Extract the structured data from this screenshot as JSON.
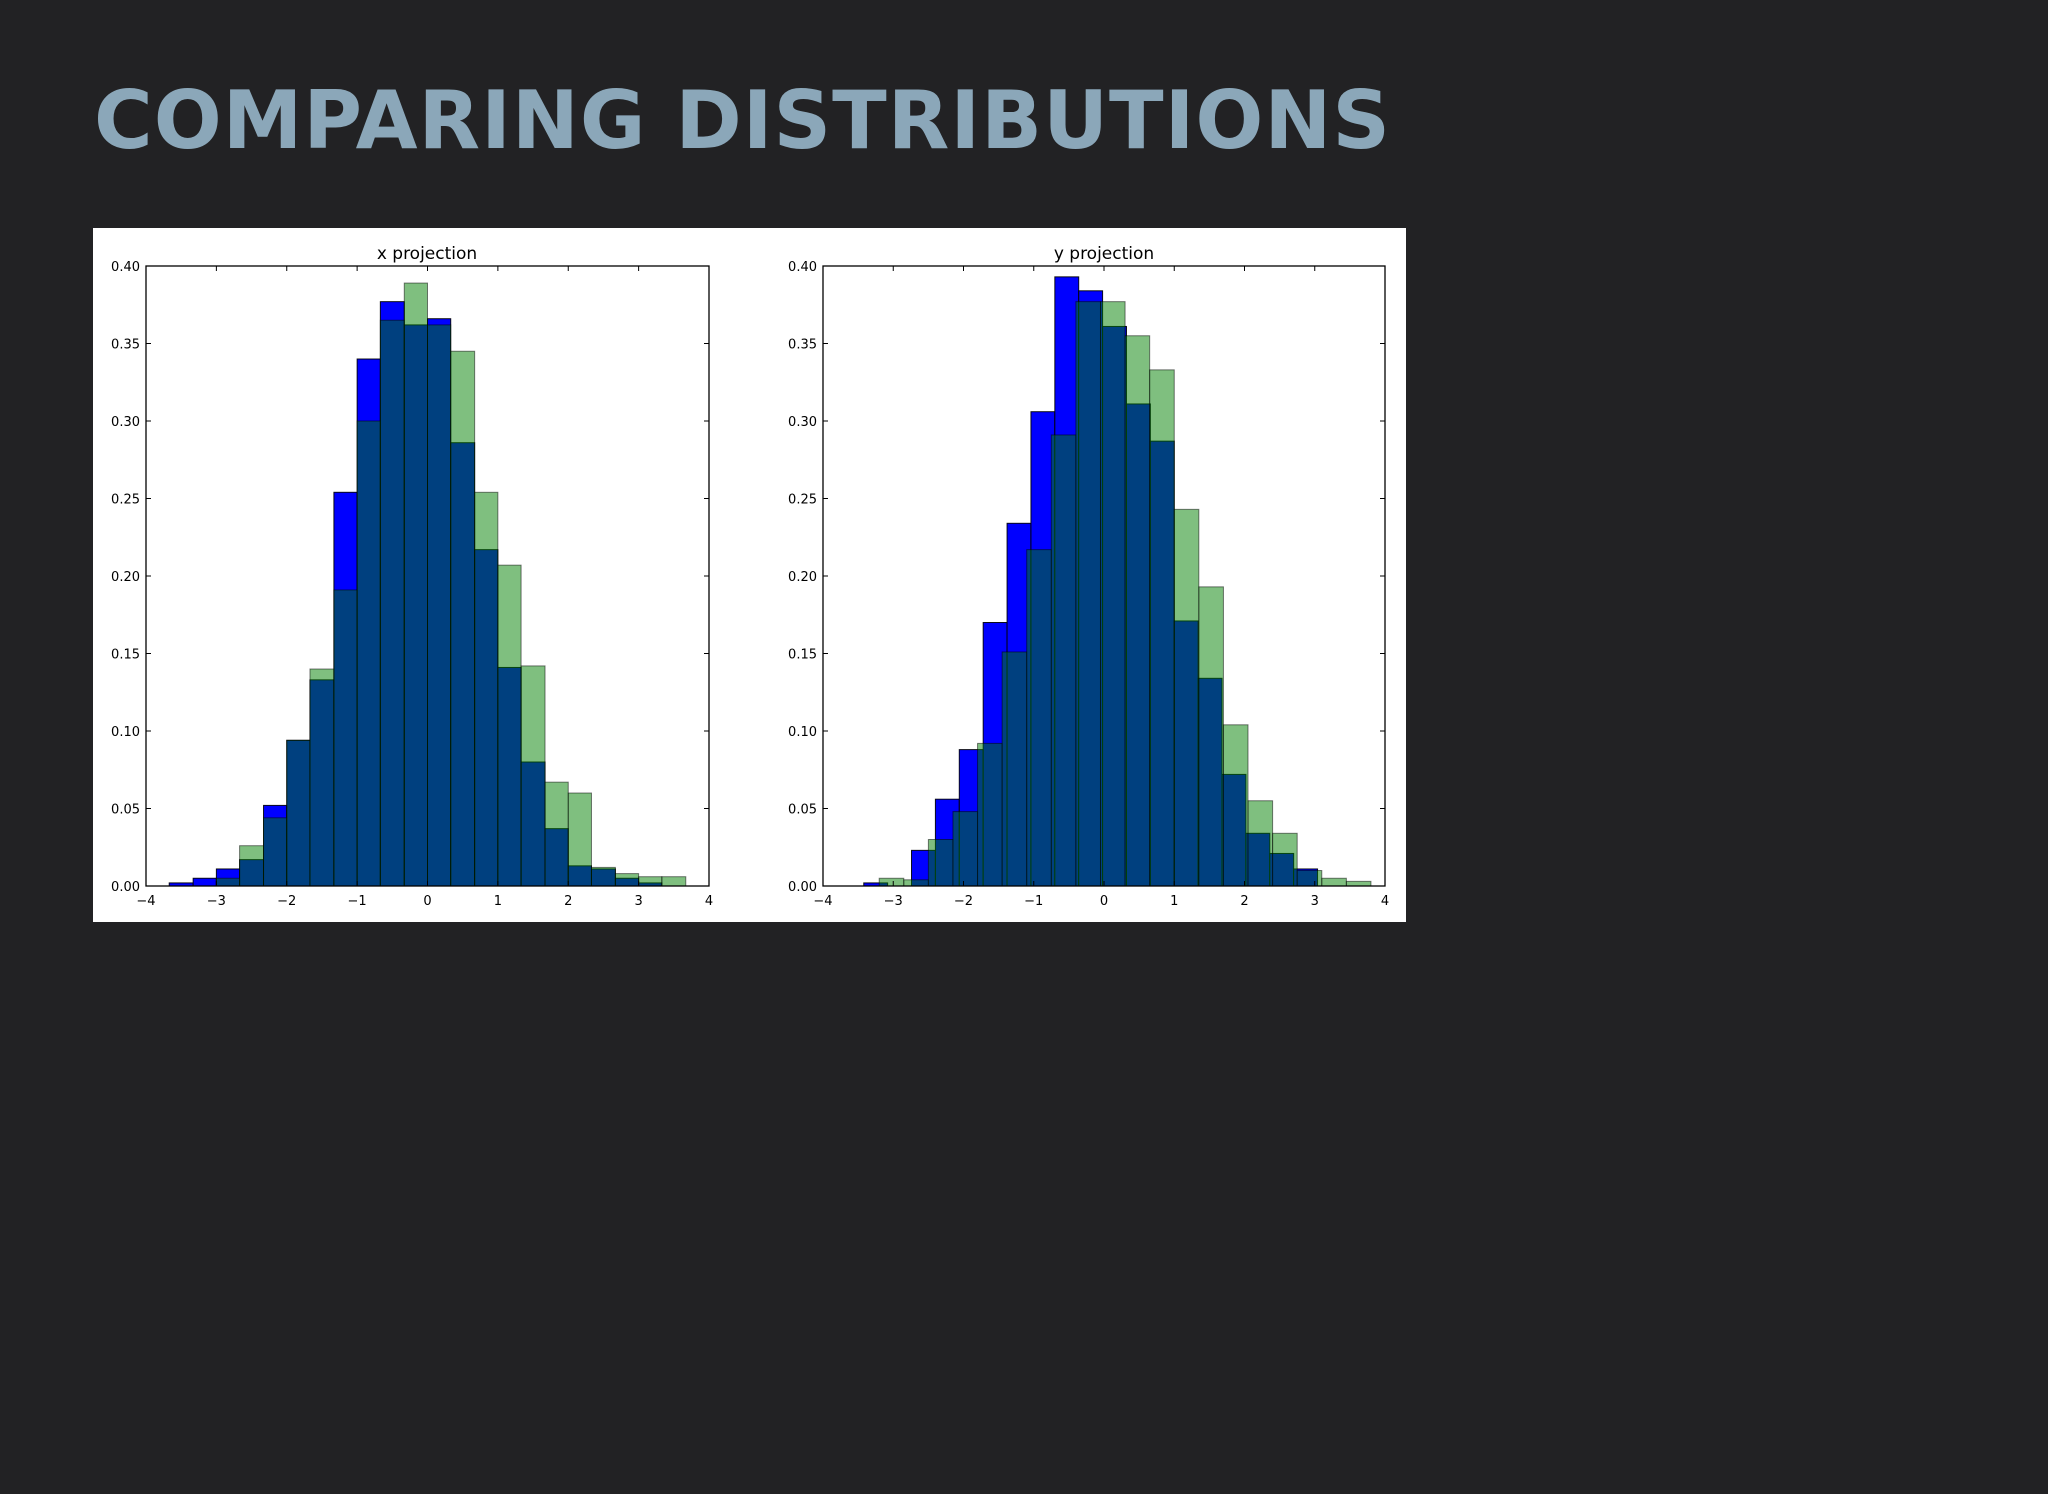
{
  "slide": {
    "title": "COMPARING DISTRIBUTIONS"
  },
  "colors": {
    "background": "#222224",
    "title": "#8ba7b9",
    "blue_series": "#0000ff",
    "green_series": "#008000",
    "green_alpha": 0.5
  },
  "chart_data": [
    {
      "type": "bar",
      "title": "x projection",
      "xlabel": "",
      "ylabel": "",
      "xlim": [
        -4,
        4
      ],
      "ylim": [
        0,
        0.4
      ],
      "xticks": [
        "−4",
        "−3",
        "−2",
        "−1",
        "0",
        "1",
        "2",
        "3",
        "4"
      ],
      "yticks": [
        "0.00",
        "0.05",
        "0.10",
        "0.15",
        "0.20",
        "0.25",
        "0.30",
        "0.35",
        "0.40"
      ],
      "grid": false,
      "series": [
        {
          "color": "#0000ff",
          "alpha": 1,
          "bins": [
            [
              -3.67,
              -3.33,
              0.002
            ],
            [
              -3.33,
              -3.0,
              0.005
            ],
            [
              -3.0,
              -2.67,
              0.011
            ],
            [
              -2.67,
              -2.33,
              0.017
            ],
            [
              -2.33,
              -2.0,
              0.052
            ],
            [
              -2.0,
              -1.67,
              0.094
            ],
            [
              -1.67,
              -1.33,
              0.133
            ],
            [
              -1.33,
              -1.0,
              0.254
            ],
            [
              -1.0,
              -0.67,
              0.34
            ],
            [
              -0.67,
              -0.33,
              0.377
            ],
            [
              -0.33,
              0.0,
              0.362
            ],
            [
              0.0,
              0.33,
              0.366
            ],
            [
              0.33,
              0.67,
              0.286
            ],
            [
              0.67,
              1.0,
              0.217
            ],
            [
              1.0,
              1.33,
              0.141
            ],
            [
              1.33,
              1.67,
              0.08
            ],
            [
              1.67,
              2.0,
              0.037
            ],
            [
              2.0,
              2.33,
              0.013
            ],
            [
              2.33,
              2.67,
              0.011
            ],
            [
              2.67,
              3.0,
              0.005
            ],
            [
              3.0,
              3.33,
              0.002
            ]
          ]
        },
        {
          "color": "#008000",
          "alpha": 0.5,
          "bins": [
            [
              -3.0,
              -2.67,
              0.005
            ],
            [
              -2.67,
              -2.33,
              0.026
            ],
            [
              -2.33,
              -2.0,
              0.044
            ],
            [
              -2.0,
              -1.67,
              0.094
            ],
            [
              -1.67,
              -1.33,
              0.14
            ],
            [
              -1.33,
              -1.0,
              0.191
            ],
            [
              -1.0,
              -0.67,
              0.3
            ],
            [
              -0.67,
              -0.33,
              0.365
            ],
            [
              -0.33,
              0.0,
              0.389
            ],
            [
              0.0,
              0.33,
              0.362
            ],
            [
              0.33,
              0.67,
              0.345
            ],
            [
              0.67,
              1.0,
              0.254
            ],
            [
              1.0,
              1.33,
              0.207
            ],
            [
              1.33,
              1.67,
              0.142
            ],
            [
              1.67,
              2.0,
              0.067
            ],
            [
              2.0,
              2.33,
              0.06
            ],
            [
              2.33,
              2.67,
              0.012
            ],
            [
              2.67,
              3.0,
              0.008
            ],
            [
              3.0,
              3.33,
              0.006
            ],
            [
              3.33,
              3.67,
              0.006
            ]
          ]
        }
      ]
    },
    {
      "type": "bar",
      "title": "y projection",
      "xlabel": "",
      "ylabel": "",
      "xlim": [
        -4,
        4
      ],
      "ylim": [
        0,
        0.4
      ],
      "xticks": [
        "−4",
        "−3",
        "−2",
        "−1",
        "0",
        "1",
        "2",
        "3",
        "4"
      ],
      "yticks": [
        "0.00",
        "0.05",
        "0.10",
        "0.15",
        "0.20",
        "0.25",
        "0.30",
        "0.35",
        "0.40"
      ],
      "grid": false,
      "series": [
        {
          "color": "#0000ff",
          "alpha": 1,
          "bins": [
            [
              -3.42,
              -3.08,
              0.002
            ],
            [
              -2.74,
              -2.4,
              0.023
            ],
            [
              -2.4,
              -2.06,
              0.056
            ],
            [
              -2.06,
              -1.72,
              0.088
            ],
            [
              -1.72,
              -1.38,
              0.17
            ],
            [
              -1.38,
              -1.04,
              0.234
            ],
            [
              -1.04,
              -0.7,
              0.306
            ],
            [
              -0.7,
              -0.36,
              0.393
            ],
            [
              -0.36,
              -0.02,
              0.384
            ],
            [
              -0.02,
              0.32,
              0.361
            ],
            [
              0.32,
              0.66,
              0.311
            ],
            [
              0.66,
              1.0,
              0.287
            ],
            [
              1.0,
              1.34,
              0.171
            ],
            [
              1.34,
              1.68,
              0.134
            ],
            [
              1.68,
              2.02,
              0.072
            ],
            [
              2.02,
              2.36,
              0.034
            ],
            [
              2.36,
              2.7,
              0.021
            ],
            [
              2.7,
              3.04,
              0.011
            ]
          ]
        },
        {
          "color": "#008000",
          "alpha": 0.5,
          "bins": [
            [
              -3.2,
              -2.85,
              0.005
            ],
            [
              -2.85,
              -2.5,
              0.004
            ],
            [
              -2.5,
              -2.15,
              0.03
            ],
            [
              -2.15,
              -1.8,
              0.048
            ],
            [
              -1.8,
              -1.45,
              0.092
            ],
            [
              -1.45,
              -1.1,
              0.151
            ],
            [
              -1.1,
              -0.75,
              0.217
            ],
            [
              -0.75,
              -0.4,
              0.291
            ],
            [
              -0.4,
              -0.05,
              0.377
            ],
            [
              -0.05,
              0.3,
              0.377
            ],
            [
              0.3,
              0.65,
              0.355
            ],
            [
              0.65,
              1.0,
              0.333
            ],
            [
              1.0,
              1.35,
              0.243
            ],
            [
              1.35,
              1.7,
              0.193
            ],
            [
              1.7,
              2.05,
              0.104
            ],
            [
              2.05,
              2.4,
              0.055
            ],
            [
              2.4,
              2.75,
              0.034
            ],
            [
              2.75,
              3.1,
              0.01
            ],
            [
              3.1,
              3.45,
              0.005
            ],
            [
              3.45,
              3.8,
              0.003
            ]
          ]
        }
      ]
    }
  ]
}
